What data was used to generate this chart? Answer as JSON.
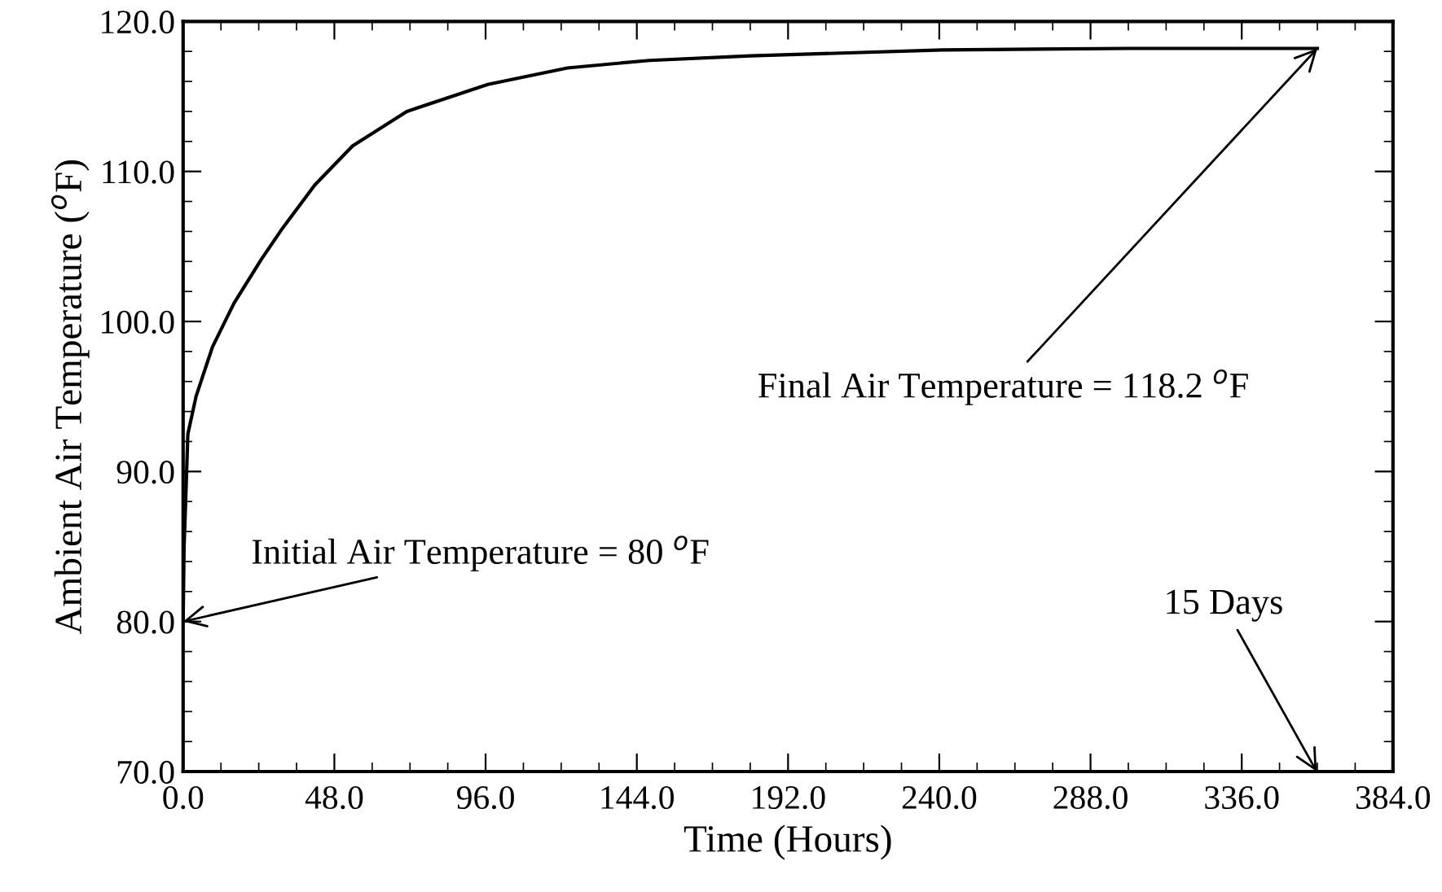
{
  "chart_data": {
    "type": "line",
    "xlabel": "Time (Hours)",
    "ylabel": "Ambient Air Temperature ($^{o}$F)",
    "x": [
      0,
      0.3,
      0.8,
      1.5,
      4.1,
      9.3,
      16.1,
      24.7,
      31.5,
      41.8,
      53.8,
      71,
      96.7,
      122,
      148,
      180,
      241,
      300,
      360
    ],
    "series": [
      {
        "color": "#000000",
        "values": [
          80,
          85,
          88,
          92.5,
          95.0,
          98.3,
          101.2,
          104.1,
          106.2,
          109.1,
          111.7,
          114.0,
          115.8,
          116.9,
          117.4,
          117.7,
          118.1,
          118.2,
          118.2
        ]
      }
    ],
    "xlim": [
      0,
      384
    ],
    "xticks": [
      {
        "value": 0,
        "label": "0.0"
      },
      {
        "value": 48,
        "label": "48.0"
      },
      {
        "value": 96,
        "label": "96.0"
      },
      {
        "value": 144,
        "label": "144.0"
      },
      {
        "value": 192,
        "label": "192.0"
      },
      {
        "value": 240,
        "label": "240.0"
      },
      {
        "value": 288,
        "label": "288.0"
      },
      {
        "value": 336,
        "label": "336.0"
      },
      {
        "value": 384,
        "label": "384.0"
      }
    ],
    "ylim": [
      70,
      120
    ],
    "yticks": [
      {
        "value": 70,
        "label": "70.0"
      },
      {
        "value": 80,
        "label": "80.0"
      },
      {
        "value": 90,
        "label": "90.0"
      },
      {
        "value": 100,
        "label": "100.0"
      },
      {
        "value": 110,
        "label": "110.0"
      },
      {
        "value": 120,
        "label": "120.0"
      }
    ],
    "grid": false,
    "marker": "none",
    "line_style": "solid",
    "annotations": [
      {
        "text": "Initial Air Temperature = 80 $^{o}$F",
        "x": 0,
        "y": 80
      },
      {
        "text": "Final Air Temperature = 118.2 $^{o}$F",
        "x": 360,
        "y": 118.2
      },
      "15 Days"
    ]
  }
}
